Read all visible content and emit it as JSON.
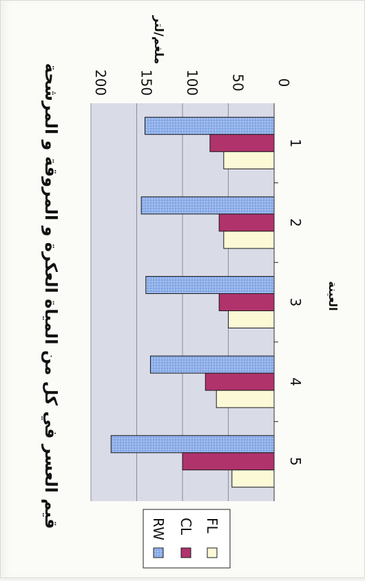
{
  "chart_data": {
    "type": "bar",
    "title": "قيم العسر في كل من المياة العكرة و المروقة و المرشحة",
    "xlabel": "العينة",
    "ylabel": "ملغم/لتر",
    "categories": [
      "1",
      "2",
      "3",
      "4",
      "5"
    ],
    "yticks": [
      "0",
      "50",
      "100",
      "150",
      "200"
    ],
    "ylim": [
      0,
      200
    ],
    "grid": true,
    "legend_position": "right",
    "orientation": "rotated-90",
    "series": [
      {
        "name": "RW",
        "values": [
          141,
          145,
          140,
          135,
          178
        ],
        "color": "#8fb0ea"
      },
      {
        "name": "CL",
        "values": [
          70,
          60,
          60,
          75,
          100
        ],
        "color": "#b0336c"
      },
      {
        "name": "FL",
        "values": [
          55,
          55,
          50,
          63,
          46
        ],
        "color": "#fbf9d6"
      }
    ],
    "colors": {
      "plot_background": "#d9dbe7",
      "gridline": "#7a7a7a",
      "axis": "#222222"
    }
  }
}
